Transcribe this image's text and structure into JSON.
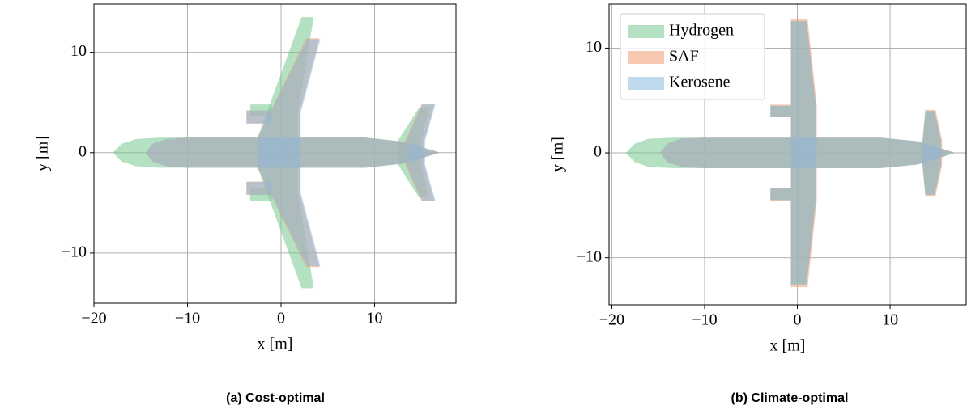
{
  "chart_data": [
    {
      "type": "planform",
      "caption": "(a) Cost-optimal",
      "xlabel": "x [m]",
      "ylabel": "y [m]",
      "xlim": [
        -20,
        18.7
      ],
      "ylim": [
        -15,
        14.8
      ],
      "grid": true,
      "xticks": [
        {
          "value": -20,
          "label": "−20"
        },
        {
          "value": -10,
          "label": "−10"
        },
        0,
        10
      ],
      "yticks": [
        {
          "value": -10,
          "label": "−10"
        },
        0,
        10
      ],
      "series": [
        {
          "color": "#74c98f",
          "parts": [
            {
              "x": [
                -18,
                -17,
                -15.5,
                -13,
                9,
                13,
                17,
                13,
                9,
                -13,
                -15.5,
                -17
              ],
              "y": [
                0,
                0.9,
                1.35,
                1.5,
                1.5,
                1.1,
                0,
                -1.1,
                -1.5,
                -1.5,
                -1.35,
                -0.9
              ]
            },
            {
              "x": [
                -2.5,
                2.2,
                3.5,
                1.8,
                1.8,
                3.5,
                2.2,
                -2.5
              ],
              "y": [
                1.5,
                13.5,
                13.5,
                4,
                -4,
                -13.5,
                -13.5,
                -1.5
              ]
            },
            {
              "x": [
                -3.3,
                -1,
                -1,
                -3.3
              ],
              "y": [
                3.6,
                3.6,
                4.8,
                4.8
              ]
            },
            {
              "x": [
                -3.3,
                -1,
                -1,
                -3.3
              ],
              "y": [
                -3.6,
                -3.6,
                -4.8,
                -4.8
              ]
            },
            {
              "x": [
                12.5,
                14.7,
                15.8,
                15,
                15,
                15.8,
                14.7,
                12.5
              ],
              "y": [
                1.2,
                4.4,
                4.4,
                1.2,
                -1.2,
                -4.4,
                -4.4,
                -1.2
              ]
            }
          ]
        },
        {
          "color": "#f09a72",
          "parts": [
            {
              "x": [
                -14.5,
                -13.7,
                -12.3,
                -10,
                9,
                13,
                17,
                13,
                9,
                -10,
                -12.3,
                -13.7
              ],
              "y": [
                0,
                0.9,
                1.35,
                1.5,
                1.5,
                1.1,
                0,
                -1.1,
                -1.5,
                -1.5,
                -1.35,
                -0.9
              ]
            },
            {
              "x": [
                -2.5,
                2.7,
                4.1,
                2,
                2,
                4.1,
                2.7,
                -2.5
              ],
              "y": [
                1.5,
                11.4,
                11.4,
                4,
                -4,
                -11.4,
                -11.4,
                -1.5
              ]
            },
            {
              "x": [
                -3.7,
                -1,
                -1,
                -3.7
              ],
              "y": [
                2.9,
                2.9,
                4.2,
                4.2
              ]
            },
            {
              "x": [
                -3.7,
                -1,
                -1,
                -3.7
              ],
              "y": [
                -2.9,
                -2.9,
                -4.2,
                -4.2
              ]
            },
            {
              "x": [
                13.3,
                15,
                16.4,
                15.3,
                15.3,
                16.4,
                15,
                13.3
              ],
              "y": [
                1.2,
                4.8,
                4.8,
                1.2,
                -1.2,
                -4.8,
                -4.8,
                -1.2
              ]
            }
          ]
        },
        {
          "color": "#8bbbdc",
          "parts": [
            {
              "x": [
                -14.5,
                -13.7,
                -12.3,
                -10,
                9,
                13,
                17,
                13,
                9,
                -10,
                -12.3,
                -13.7
              ],
              "y": [
                0,
                0.9,
                1.35,
                1.5,
                1.5,
                1.1,
                0,
                -1.1,
                -1.5,
                -1.5,
                -1.35,
                -0.9
              ]
            },
            {
              "x": [
                -2.5,
                2.8,
                4.2,
                2.1,
                2.1,
                4.2,
                2.8,
                -2.5
              ],
              "y": [
                1.5,
                11.3,
                11.3,
                4,
                -4,
                -11.3,
                -11.3,
                -1.5
              ]
            },
            {
              "x": [
                -3.7,
                -1,
                -1,
                -3.7
              ],
              "y": [
                2.9,
                2.9,
                4.2,
                4.2
              ]
            },
            {
              "x": [
                -3.7,
                -1,
                -1,
                -3.7
              ],
              "y": [
                -2.9,
                -2.9,
                -4.2,
                -4.2
              ]
            },
            {
              "x": [
                13.4,
                15.1,
                16.5,
                15.4,
                15.4,
                16.5,
                15.1,
                13.4
              ],
              "y": [
                1.2,
                4.8,
                4.8,
                1.2,
                -1.2,
                -4.8,
                -4.8,
                -1.2
              ]
            }
          ]
        }
      ]
    },
    {
      "type": "planform",
      "caption": "(b) Climate-optimal",
      "xlabel": "x [m]",
      "ylabel": "y [m]",
      "xlim": [
        -20.3,
        18.2
      ],
      "ylim": [
        -14.5,
        14.2
      ],
      "grid": true,
      "legend": "upper left",
      "xticks": [
        {
          "value": -20,
          "label": "−20"
        },
        {
          "value": -10,
          "label": "−10"
        },
        0,
        10
      ],
      "yticks": [
        {
          "value": -10,
          "label": "−10"
        },
        0,
        10
      ],
      "series": [
        {
          "name": "Hydrogen",
          "color": "#74c98f",
          "parts": [
            {
              "x": [
                -18.5,
                -17.5,
                -16,
                -13.5,
                9,
                13,
                17,
                13,
                9,
                -13.5,
                -16,
                -17.5
              ],
              "y": [
                0,
                0.9,
                1.35,
                1.45,
                1.45,
                1.1,
                0,
                -1.1,
                -1.45,
                -1.45,
                -1.35,
                -0.9
              ]
            },
            {
              "x": [
                -0.7,
                -0.7,
                1,
                2,
                2,
                1,
                -0.7,
                -0.7
              ],
              "y": [
                1.5,
                12.5,
                12.5,
                4.5,
                -4.5,
                -12.5,
                -12.5,
                -1.5
              ]
            },
            {
              "x": [
                -2.9,
                -0.7,
                -0.7,
                -2.9
              ],
              "y": [
                3.4,
                3.4,
                4.5,
                4.5
              ]
            },
            {
              "x": [
                -2.9,
                -0.7,
                -0.7,
                -2.9
              ],
              "y": [
                -3.4,
                -3.4,
                -4.5,
                -4.5
              ]
            },
            {
              "x": [
                13.5,
                13.8,
                14.8,
                15.5,
                15.5,
                14.8,
                13.8,
                13.5
              ],
              "y": [
                1.2,
                4,
                4,
                1.2,
                -1.2,
                -4,
                -4,
                -1.2
              ]
            }
          ]
        },
        {
          "name": "SAF",
          "color": "#f09a72",
          "parts": [
            {
              "x": [
                -14.8,
                -14,
                -12.5,
                -10.3,
                9,
                13,
                17,
                13,
                9,
                -10.3,
                -12.5,
                -14
              ],
              "y": [
                0,
                0.9,
                1.35,
                1.45,
                1.45,
                1.1,
                0,
                -1.1,
                -1.45,
                -1.45,
                -1.35,
                -0.9
              ]
            },
            {
              "x": [
                -0.7,
                -0.7,
                1.1,
                2.1,
                2.1,
                1.1,
                -0.7,
                -0.7
              ],
              "y": [
                1.5,
                12.8,
                12.8,
                4.5,
                -4.5,
                -12.8,
                -12.8,
                -1.5
              ]
            },
            {
              "x": [
                -2.9,
                -0.7,
                -0.7,
                -2.9
              ],
              "y": [
                3.4,
                3.4,
                4.6,
                4.6
              ]
            },
            {
              "x": [
                -2.9,
                -0.7,
                -0.7,
                -2.9
              ],
              "y": [
                -3.4,
                -3.4,
                -4.6,
                -4.6
              ]
            },
            {
              "x": [
                13.5,
                13.8,
                14.9,
                15.6,
                15.6,
                14.9,
                13.8,
                13.5
              ],
              "y": [
                1.2,
                4.1,
                4.1,
                1.2,
                -1.2,
                -4.1,
                -4.1,
                -1.2
              ]
            }
          ]
        },
        {
          "name": "Kerosene",
          "color": "#8bbbdc",
          "parts": [
            {
              "x": [
                -14.8,
                -14,
                -12.5,
                -10.3,
                9,
                13,
                17,
                13,
                9,
                -10.3,
                -12.5,
                -14
              ],
              "y": [
                0,
                0.9,
                1.35,
                1.45,
                1.45,
                1.1,
                0,
                -1.1,
                -1.45,
                -1.45,
                -1.35,
                -0.9
              ]
            },
            {
              "x": [
                -0.7,
                -0.7,
                1,
                2,
                2,
                1,
                -0.7,
                -0.7
              ],
              "y": [
                1.5,
                12.6,
                12.6,
                4.5,
                -4.5,
                -12.6,
                -12.6,
                -1.5
              ]
            },
            {
              "x": [
                -2.9,
                -0.7,
                -0.7,
                -2.9
              ],
              "y": [
                3.4,
                3.4,
                4.5,
                4.5
              ]
            },
            {
              "x": [
                -2.9,
                -0.7,
                -0.7,
                -2.9
              ],
              "y": [
                -3.4,
                -3.4,
                -4.5,
                -4.5
              ]
            },
            {
              "x": [
                13.5,
                13.8,
                14.8,
                15.5,
                15.5,
                14.8,
                13.8,
                13.5
              ],
              "y": [
                1.2,
                4,
                4,
                1.2,
                -1.2,
                -4,
                -4,
                -1.2
              ]
            }
          ]
        }
      ]
    }
  ]
}
